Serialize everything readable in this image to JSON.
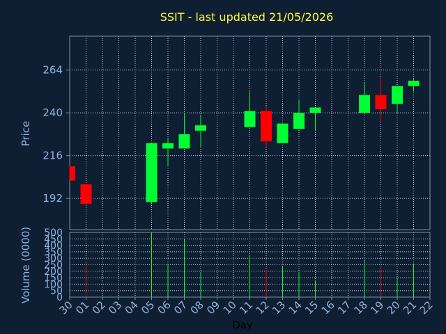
{
  "chart_data": {
    "type": "candlestick",
    "title": "SSIT - last updated 21/05/2026",
    "xlabel": "Day",
    "ylabel_price": "Price",
    "ylabel_volume": "Volume (0000)",
    "price_ticks": [
      192,
      216,
      240,
      264
    ],
    "price_range": [
      174.5,
      283
    ],
    "volume_ticks": [
      0,
      50,
      100,
      150,
      200,
      250,
      300,
      350,
      400,
      450,
      500
    ],
    "volume_range": [
      0,
      500
    ],
    "days": [
      "30",
      "01",
      "02",
      "03",
      "04",
      "05",
      "06",
      "07",
      "08",
      "09",
      "10",
      "11",
      "12",
      "13",
      "14",
      "15",
      "16",
      "17",
      "18",
      "19",
      "20",
      "21",
      "22"
    ],
    "candles": [
      {
        "day": "30",
        "open": 210,
        "close": 202,
        "high": 210,
        "low": 202,
        "volume": 0
      },
      {
        "day": "01",
        "open": 200,
        "close": 189,
        "high": 200,
        "low": 188,
        "volume": 270
      },
      {
        "day": "05",
        "open": 190,
        "close": 223,
        "high": 223,
        "low": 189,
        "volume": 500
      },
      {
        "day": "06",
        "open": 220,
        "close": 223,
        "high": 226,
        "low": 210,
        "volume": 260
      },
      {
        "day": "07",
        "open": 220,
        "close": 228,
        "high": 240,
        "low": 220,
        "volume": 450
      },
      {
        "day": "08",
        "open": 230,
        "close": 233,
        "high": 239,
        "low": 221,
        "volume": 195
      },
      {
        "day": "11",
        "open": 232,
        "close": 241,
        "high": 252,
        "low": 232,
        "volume": 320
      },
      {
        "day": "12",
        "open": 241,
        "close": 224,
        "high": 244,
        "low": 221,
        "volume": 210
      },
      {
        "day": "13",
        "open": 223,
        "close": 234,
        "high": 234,
        "low": 223,
        "volume": 235
      },
      {
        "day": "14",
        "open": 231,
        "close": 240,
        "high": 247,
        "low": 231,
        "volume": 195
      },
      {
        "day": "15",
        "open": 240,
        "close": 243,
        "high": 243,
        "low": 230,
        "volume": 130
      },
      {
        "day": "18",
        "open": 240,
        "close": 250,
        "high": 257,
        "low": 240,
        "volume": 285
      },
      {
        "day": "19",
        "open": 250,
        "close": 242,
        "high": 260,
        "low": 235,
        "volume": 240
      },
      {
        "day": "20",
        "open": 245,
        "close": 255,
        "high": 255,
        "low": 240,
        "volume": 140
      },
      {
        "day": "21",
        "open": 255,
        "close": 258,
        "high": 259,
        "low": 252,
        "volume": 260
      }
    ],
    "grid": true,
    "colors": {
      "up": "#00ff33",
      "down": "#ff0000",
      "grid": "#c8d0da",
      "frame": "#7f8fa6",
      "title": "#ffff33",
      "axis_text": "#8fb4dc"
    }
  }
}
